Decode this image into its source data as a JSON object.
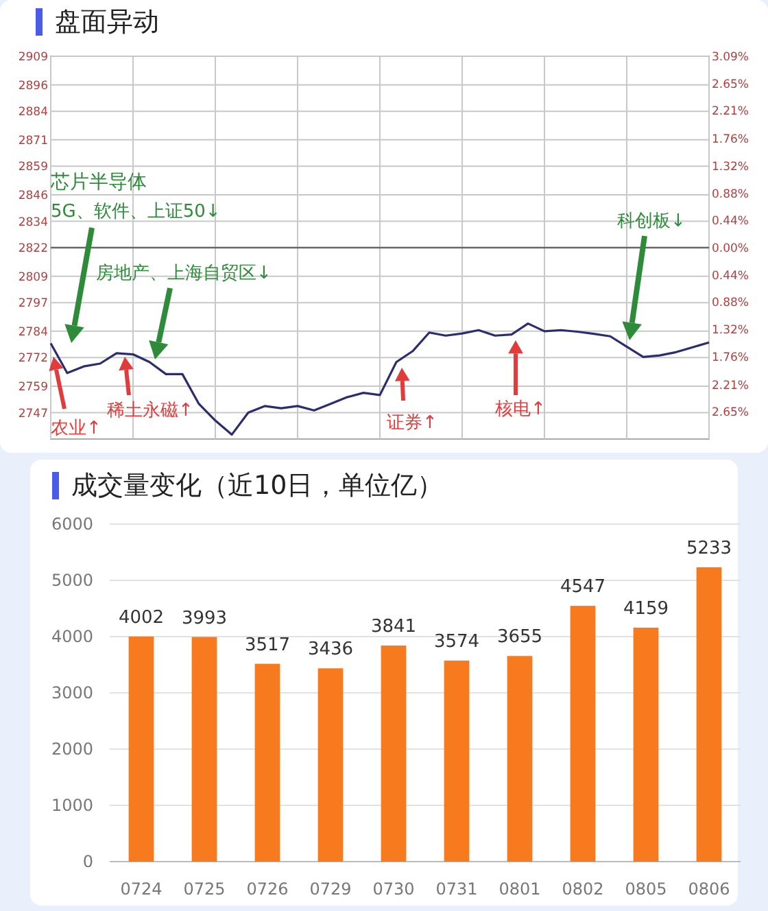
{
  "chart_data": [
    {
      "type": "line",
      "title": "盘面异动",
      "categories": [
        null,
        null,
        null,
        null,
        null,
        null,
        null,
        null,
        null,
        null,
        null,
        null,
        null,
        null,
        null,
        null,
        null,
        null,
        null,
        null,
        null,
        null,
        null,
        null,
        null,
        null,
        null,
        null,
        null,
        null,
        null,
        null,
        null,
        null,
        null,
        null,
        null,
        null,
        null,
        null,
        null
      ],
      "series": [
        {
          "color": "#2b2d6e",
          "values": [
            2778.5,
            2765,
            2768,
            2769.3,
            2774,
            2773.5,
            2770,
            2764.5,
            2764.5,
            2751,
            2743.4,
            2737,
            2747,
            2750,
            2749,
            2750,
            2748,
            2751,
            2754,
            2756,
            2755,
            2770,
            2775,
            2783.4,
            2782,
            2783,
            2784.5,
            2782,
            2782.5,
            2787.5,
            2784,
            2784.5,
            2783.8,
            2782.8,
            2781.7,
            2777,
            2772.3,
            2773,
            2774.5,
            2776.7,
            2778.9
          ]
        }
      ],
      "ylim": [
        2735,
        2909
      ],
      "yticks": [
        2909,
        2896,
        2884,
        2871,
        2859,
        2846,
        2834,
        2822,
        2809,
        2797,
        2784,
        2772,
        2759,
        2747
      ],
      "y2lim": [
        -3.09,
        3.09
      ],
      "y2ticks": [
        {
          "value": 3.09,
          "label": "3.09%"
        },
        {
          "value": 2.65,
          "label": "2.65%"
        },
        {
          "value": 2.21,
          "label": "2.21%"
        },
        {
          "value": 1.76,
          "label": "1.76%"
        },
        {
          "value": 1.32,
          "label": "1.32%"
        },
        {
          "value": 0.88,
          "label": "0.88%"
        },
        {
          "value": 0.44,
          "label": "0.44%"
        },
        {
          "value": 0,
          "label": "0.00%"
        },
        {
          "value": -0.44,
          "label": "0.44%"
        },
        {
          "value": -0.88,
          "label": "0.88%"
        },
        {
          "value": -1.32,
          "label": "1.32%"
        },
        {
          "value": -1.76,
          "label": "1.76%"
        },
        {
          "value": -2.21,
          "label": "2.21%"
        },
        {
          "value": -2.65,
          "label": "2.65%"
        }
      ],
      "grid": true,
      "ref_lines": [
        {
          "axis": "y",
          "value": 2822
        }
      ],
      "annotations": [
        "芯片半导体",
        "5G、软件、上证50↓",
        "房地产、上海自贸区↓",
        "科创板↓",
        "农业↑",
        "稀土永磁↑",
        "证券↑",
        "核电↑"
      ]
    },
    {
      "type": "bar",
      "title": "成交量变化（近10日，单位亿）",
      "categories": [
        "0724",
        "0725",
        "0726",
        "0729",
        "0730",
        "0731",
        "0801",
        "0802",
        "0805",
        "0806"
      ],
      "values": [
        4002,
        3993,
        3517,
        3436,
        3841,
        3574,
        3655,
        4547,
        4159,
        5233
      ],
      "color": "#f77b1e",
      "ylim": [
        0,
        6000
      ],
      "yticks": [
        0,
        1000,
        2000,
        3000,
        4000,
        5000,
        6000
      ],
      "grid": "y",
      "data_labels": true
    }
  ]
}
